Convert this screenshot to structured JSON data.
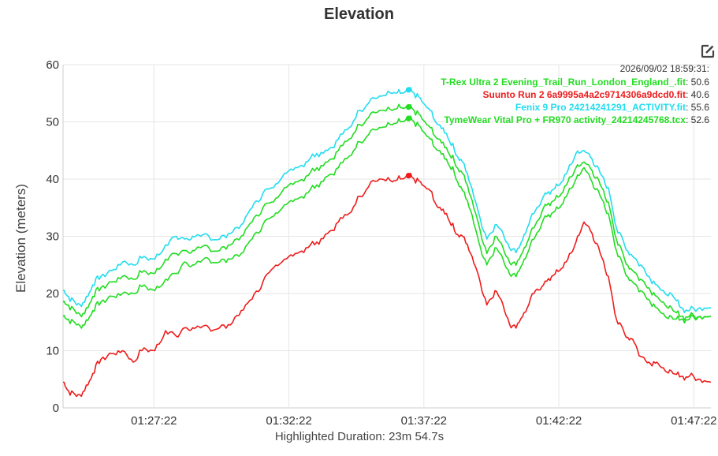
{
  "chart_data": {
    "type": "line",
    "title": "Elevation",
    "ylabel": "Elevation (meters)",
    "xlabel": "Highlighted Duration: 23m 54.7s",
    "ylim": [
      0,
      60
    ],
    "yticks": [
      0,
      10,
      20,
      30,
      40,
      50,
      60
    ],
    "xlim_minutes": [
      84.0,
      108.0
    ],
    "xticks": [
      {
        "t": 87.3667,
        "label": "01:27:22"
      },
      {
        "t": 92.3667,
        "label": "01:32:22"
      },
      {
        "t": 97.3667,
        "label": "01:37:22"
      },
      {
        "t": 102.3667,
        "label": "01:42:22"
      },
      {
        "t": 107.3667,
        "label": "01:47:22"
      }
    ],
    "grid": true,
    "legend_placement": "top-right",
    "cursor": {
      "time": "2026/09/02 18:59:31:",
      "t": 96.8
    },
    "series": [
      {
        "name": "T-Rex Ultra 2 Evening_Trail_Run_London_England_.fit",
        "value": "50.6",
        "color": "#22dd22",
        "x": [
          84.0,
          84.2,
          84.5,
          84.8,
          85.1,
          85.4,
          85.8,
          86.2,
          86.6,
          87.0,
          87.4,
          87.8,
          88.2,
          88.5,
          88.8,
          89.1,
          89.4,
          89.8,
          90.2,
          90.6,
          91.0,
          91.4,
          91.8,
          92.2,
          92.6,
          93.0,
          93.4,
          93.8,
          94.2,
          94.6,
          95.0,
          95.4,
          95.8,
          96.2,
          96.5,
          96.8,
          97.0,
          97.3,
          97.6,
          97.9,
          98.2,
          98.5,
          98.8,
          99.1,
          99.4,
          99.7,
          100.0,
          100.3,
          100.6,
          100.9,
          101.2,
          101.5,
          101.8,
          102.1,
          102.4,
          102.7,
          103.0,
          103.3,
          103.6,
          103.9,
          104.2,
          104.5,
          104.8,
          105.1,
          105.4,
          105.7,
          106.0,
          106.3,
          106.6,
          106.9,
          107.2,
          107.6,
          108.0
        ],
        "values": [
          16.0,
          15.5,
          14.5,
          14.5,
          17.0,
          18.5,
          19.5,
          20.0,
          20.0,
          21.5,
          20.5,
          22.5,
          23.5,
          25.5,
          25.0,
          25.5,
          26.0,
          25.5,
          26.0,
          27.0,
          29.5,
          32.0,
          33.5,
          35.5,
          36.5,
          37.5,
          39.0,
          40.5,
          42.0,
          44.0,
          46.5,
          48.5,
          49.0,
          49.5,
          50.0,
          50.6,
          50.0,
          48.5,
          47.0,
          45.0,
          43.5,
          41.0,
          38.0,
          34.5,
          29.0,
          25.0,
          28.0,
          26.0,
          23.0,
          24.0,
          27.0,
          30.0,
          33.0,
          34.0,
          35.0,
          37.5,
          40.0,
          42.0,
          39.5,
          37.0,
          34.0,
          27.5,
          24.0,
          22.0,
          20.5,
          19.0,
          17.5,
          16.0,
          15.5,
          15.5,
          15.5,
          16.0,
          16.0
        ]
      },
      {
        "name": "Suunto Run 2 6a9995a4a2c9714306a9dcd0.fit",
        "value": "40.6",
        "color": "#ee1c1c",
        "x": [
          84.0,
          84.2,
          84.5,
          84.8,
          85.1,
          85.4,
          85.8,
          86.2,
          86.6,
          87.0,
          87.4,
          87.8,
          88.2,
          88.5,
          88.8,
          89.1,
          89.4,
          89.8,
          90.2,
          90.6,
          91.0,
          91.4,
          91.8,
          92.2,
          92.6,
          93.0,
          93.4,
          93.8,
          94.2,
          94.6,
          95.0,
          95.4,
          95.8,
          96.2,
          96.5,
          96.8,
          97.0,
          97.3,
          97.6,
          97.9,
          98.2,
          98.5,
          98.8,
          99.1,
          99.4,
          99.7,
          100.0,
          100.3,
          100.6,
          100.9,
          101.2,
          101.5,
          101.8,
          102.1,
          102.4,
          102.7,
          103.0,
          103.3,
          103.6,
          103.9,
          104.2,
          104.5,
          104.8,
          105.1,
          105.4,
          105.7,
          106.0,
          106.3,
          106.6,
          106.9,
          107.2,
          107.6,
          108.0
        ],
        "values": [
          4.5,
          3.0,
          2.0,
          3.0,
          6.0,
          8.5,
          9.5,
          10.0,
          8.0,
          10.5,
          10.0,
          13.5,
          12.5,
          14.0,
          14.0,
          14.0,
          14.0,
          14.0,
          14.5,
          17.0,
          19.0,
          22.0,
          24.5,
          26.0,
          27.0,
          28.0,
          29.0,
          30.5,
          32.5,
          34.0,
          37.0,
          39.5,
          40.0,
          39.5,
          40.0,
          40.6,
          40.0,
          39.0,
          38.0,
          35.0,
          34.0,
          31.0,
          30.0,
          27.0,
          23.0,
          18.0,
          20.5,
          18.0,
          14.0,
          15.0,
          17.5,
          20.5,
          21.5,
          23.0,
          24.0,
          26.0,
          29.0,
          32.5,
          30.5,
          27.0,
          23.0,
          15.5,
          13.0,
          12.0,
          9.0,
          8.0,
          8.0,
          6.5,
          6.0,
          5.5,
          5.5,
          5.0,
          4.5
        ]
      },
      {
        "name": "Fenix 9 Pro 24214241291_ACTIVITY.fit",
        "value": "55.6",
        "color": "#22ddee",
        "x": [
          84.0,
          84.2,
          84.5,
          84.8,
          85.1,
          85.4,
          85.8,
          86.2,
          86.6,
          87.0,
          87.4,
          87.8,
          88.2,
          88.5,
          88.8,
          89.1,
          89.4,
          89.8,
          90.2,
          90.6,
          91.0,
          91.4,
          91.8,
          92.2,
          92.6,
          93.0,
          93.4,
          93.8,
          94.2,
          94.6,
          95.0,
          95.4,
          95.8,
          96.2,
          96.5,
          96.8,
          97.0,
          97.3,
          97.6,
          97.9,
          98.2,
          98.5,
          98.8,
          99.1,
          99.4,
          99.7,
          100.0,
          100.3,
          100.6,
          100.9,
          101.2,
          101.5,
          101.8,
          102.1,
          102.4,
          102.7,
          103.0,
          103.3,
          103.6,
          103.9,
          104.2,
          104.5,
          104.8,
          105.1,
          105.4,
          105.7,
          106.0,
          106.3,
          106.6,
          106.9,
          107.2,
          107.6,
          108.0
        ],
        "values": [
          20.5,
          19.5,
          18.0,
          18.5,
          21.5,
          23.0,
          24.0,
          25.5,
          25.0,
          26.5,
          26.0,
          28.5,
          30.0,
          29.5,
          30.0,
          30.0,
          30.0,
          29.5,
          30.5,
          32.0,
          35.0,
          37.5,
          38.5,
          41.0,
          42.0,
          43.0,
          44.5,
          45.0,
          47.0,
          49.0,
          52.0,
          54.0,
          54.5,
          55.0,
          55.0,
          55.6,
          55.0,
          53.5,
          52.0,
          49.5,
          48.0,
          45.0,
          43.0,
          39.0,
          34.0,
          29.5,
          32.0,
          30.5,
          27.5,
          28.0,
          31.5,
          34.5,
          37.0,
          38.0,
          39.0,
          41.5,
          44.5,
          45.0,
          43.5,
          41.0,
          38.5,
          31.5,
          28.5,
          26.5,
          25.0,
          23.0,
          21.5,
          20.0,
          19.5,
          17.5,
          17.0,
          17.5,
          17.5
        ]
      },
      {
        "name": "TymeWear Vital Pro + FR970 activity_24214245768.tcx",
        "value": "52.6",
        "color": "#22dd22",
        "x": [
          84.0,
          84.2,
          84.5,
          84.8,
          85.1,
          85.4,
          85.8,
          86.2,
          86.6,
          87.0,
          87.4,
          87.8,
          88.2,
          88.5,
          88.8,
          89.1,
          89.4,
          89.8,
          90.2,
          90.6,
          91.0,
          91.4,
          91.8,
          92.2,
          92.6,
          93.0,
          93.4,
          93.8,
          94.2,
          94.6,
          95.0,
          95.4,
          95.8,
          96.2,
          96.5,
          96.8,
          97.0,
          97.3,
          97.6,
          97.9,
          98.2,
          98.5,
          98.8,
          99.1,
          99.4,
          99.7,
          100.0,
          100.3,
          100.6,
          100.9,
          101.2,
          101.5,
          101.8,
          102.1,
          102.4,
          102.7,
          103.0,
          103.3,
          103.6,
          103.9,
          104.2,
          104.5,
          104.8,
          105.1,
          105.4,
          105.7,
          106.0,
          106.3,
          106.6,
          106.9,
          107.2,
          107.6,
          108.0
        ],
        "values": [
          18.5,
          18.0,
          16.5,
          16.5,
          19.5,
          21.0,
          22.0,
          23.0,
          22.5,
          24.0,
          23.5,
          26.0,
          27.0,
          27.5,
          27.5,
          28.0,
          28.0,
          27.5,
          28.5,
          30.0,
          32.5,
          35.0,
          36.0,
          38.5,
          39.5,
          40.5,
          42.0,
          43.0,
          45.0,
          47.0,
          49.5,
          51.5,
          52.0,
          52.0,
          52.5,
          52.6,
          52.0,
          50.5,
          49.0,
          47.0,
          45.5,
          43.0,
          41.0,
          37.0,
          32.0,
          27.0,
          30.0,
          28.0,
          25.0,
          26.0,
          29.0,
          32.0,
          35.0,
          36.0,
          37.0,
          39.5,
          42.0,
          43.0,
          41.5,
          39.0,
          36.0,
          29.5,
          26.0,
          24.0,
          22.5,
          21.0,
          19.5,
          18.0,
          17.0,
          16.0,
          16.0,
          16.0,
          16.0
        ]
      }
    ]
  }
}
